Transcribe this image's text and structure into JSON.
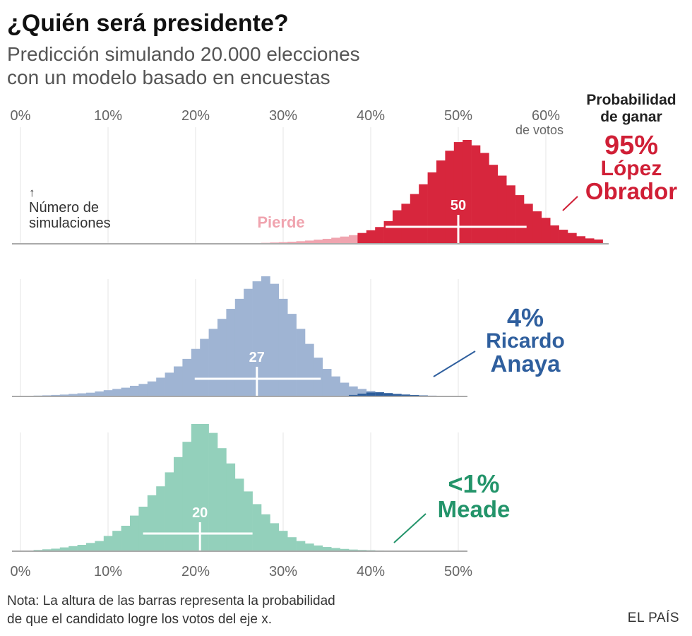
{
  "title": "¿Quién será presidente?",
  "subtitle_line1": "Predicción simulando 20.000 elecciones",
  "subtitle_line2": "con un modelo basado en encuestas",
  "prob_header_line1": "Probabilidad",
  "prob_header_line2": "de ganar",
  "y_annotation_arrow": "↑",
  "y_annotation_line1": "Número de",
  "y_annotation_line2": "simulaciones",
  "pierde_label": "Pierde",
  "top_axis_unit": "de votos",
  "note_line1": "Nota: La altura de las barras representa la probabilidad",
  "note_line2": "de que el candidato logre los votos del eje x.",
  "credit": "EL PAÍS",
  "colors": {
    "amlo": "#d7263d",
    "amlo_lose": "#f0a4af",
    "anaya": "#9fb4d3",
    "anaya_win": "#2c5d9b",
    "meade": "#93d0bb",
    "meade_win": "#3a9b73",
    "amlo_text": "#d01f36",
    "anaya_text": "#2f5f9e",
    "meade_text": "#23946a"
  },
  "chart_data": [
    {
      "type": "bar",
      "name": "López Obrador",
      "title": "¿Quién será presidente?",
      "xlabel": "de votos",
      "ylabel": "Número de simulaciones",
      "xlim": [
        0,
        67
      ],
      "x_ticks": [
        "0%",
        "10%",
        "20%",
        "30%",
        "40%",
        "50%",
        "60%"
      ],
      "grid": true,
      "bin_width": 1,
      "x": [
        22,
        23,
        24,
        25,
        26,
        27,
        28,
        29,
        30,
        31,
        32,
        33,
        34,
        35,
        36,
        37,
        38,
        39,
        40,
        41,
        42,
        43,
        44,
        45,
        46,
        47,
        48,
        49,
        50,
        51,
        52,
        53,
        54,
        55,
        56,
        57,
        58,
        59,
        60,
        61,
        62,
        63,
        64,
        65,
        66
      ],
      "values": [
        0.3,
        0.3,
        0.4,
        0.5,
        0.6,
        0.7,
        0.9,
        1.2,
        1.5,
        1.9,
        2.4,
        3,
        3.8,
        4.6,
        5.6,
        6.7,
        8,
        10,
        12.5,
        15.5,
        21,
        31,
        37,
        46,
        55,
        66,
        77,
        86,
        94,
        96,
        91,
        84,
        73,
        63,
        54,
        45,
        37,
        30,
        24,
        17,
        13,
        10,
        7,
        5,
        4
      ],
      "win_threshold_split": 38,
      "legend": [
        "Pierde"
      ],
      "median_label": "50",
      "median": 50,
      "range": [
        41.7,
        57.8
      ],
      "win_probability": "95%",
      "candidate_line1": "López",
      "candidate_line2": "Obrador"
    },
    {
      "type": "bar",
      "name": "Ricardo Anaya",
      "xlim": [
        0,
        51
      ],
      "grid": true,
      "bin_width": 1,
      "x": [
        1,
        2,
        3,
        4,
        5,
        6,
        7,
        8,
        9,
        10,
        11,
        12,
        13,
        14,
        15,
        16,
        17,
        18,
        19,
        20,
        21,
        22,
        23,
        24,
        25,
        26,
        27,
        28,
        29,
        30,
        31,
        32,
        33,
        34,
        35,
        36,
        37,
        38,
        39,
        40,
        41,
        42,
        43,
        44,
        45,
        46,
        47,
        48,
        49,
        50
      ],
      "values": [
        0.5,
        0.7,
        0.9,
        1.2,
        1.5,
        2,
        2.5,
        3,
        4,
        5,
        6,
        7,
        8.5,
        10,
        12,
        15,
        19,
        24,
        30,
        38,
        46,
        54,
        62,
        70,
        78,
        86,
        92,
        96,
        90,
        78,
        66,
        54,
        42,
        31,
        22,
        16,
        11,
        8,
        6,
        4.5,
        3.5,
        2.8,
        2,
        1.5,
        1.1,
        0.8,
        0.6,
        0.5,
        0.4,
        0.3
      ],
      "win_values": [
        0,
        0,
        0,
        0,
        0,
        0,
        0,
        0,
        0,
        0,
        0,
        0,
        0,
        0,
        0,
        0,
        0,
        0,
        0,
        0,
        0,
        0,
        0,
        0,
        0,
        0,
        0,
        0,
        0,
        0,
        0,
        0,
        0,
        0,
        0,
        0,
        0.5,
        1.2,
        2.2,
        3.2,
        3.3,
        2.6,
        2,
        1.5,
        1.1,
        0.8,
        0.6,
        0.5,
        0.4,
        0.3
      ],
      "median_label": "27",
      "median": 27,
      "range": [
        19.9,
        34.3
      ],
      "win_probability": "4%",
      "candidate_line1": "Ricardo",
      "candidate_line2": "Anaya"
    },
    {
      "type": "bar",
      "name": "Meade",
      "xlim": [
        0,
        51
      ],
      "x_ticks": [
        "0%",
        "10%",
        "20%",
        "30%",
        "40%",
        "50%"
      ],
      "grid": true,
      "bin_width": 1,
      "x": [
        1,
        2,
        3,
        4,
        5,
        6,
        7,
        8,
        9,
        10,
        11,
        12,
        13,
        14,
        15,
        16,
        17,
        18,
        19,
        20,
        21,
        22,
        23,
        24,
        25,
        26,
        27,
        28,
        29,
        30,
        31,
        32,
        33,
        34,
        35,
        36,
        37,
        38,
        39,
        40,
        41,
        42,
        43,
        44,
        45,
        46,
        47,
        48,
        49,
        50
      ],
      "values": [
        0.5,
        1,
        1.5,
        2,
        3,
        4,
        5,
        6.5,
        8,
        12,
        16,
        20,
        28,
        35,
        44,
        51,
        62,
        74,
        86,
        100,
        100,
        93,
        81,
        69,
        57,
        47,
        37,
        29,
        22,
        16,
        11,
        8,
        6,
        4.5,
        3.3,
        2.5,
        1.8,
        1.3,
        1,
        0.8,
        0.6,
        0.5,
        0.4,
        0.3,
        0.2,
        0.2,
        0.1,
        0.1,
        0.1,
        0.1
      ],
      "win_values": [
        0,
        0,
        0,
        0,
        0,
        0,
        0,
        0,
        0,
        0,
        0,
        0,
        0,
        0,
        0,
        0,
        0,
        0,
        0,
        0,
        0,
        0,
        0,
        0,
        0,
        0,
        0,
        0,
        0,
        0,
        0,
        0,
        0,
        0,
        0,
        0,
        0,
        0,
        0.2,
        0.3,
        0.3,
        0.3,
        0.3,
        0.2,
        0.1,
        0.1,
        0.1,
        0.1,
        0.1,
        0.1
      ],
      "median_label": "20",
      "median": 20.5,
      "range": [
        14,
        26.5
      ],
      "win_probability": "<1%",
      "candidate_line1": "Meade",
      "candidate_line2": ""
    }
  ]
}
